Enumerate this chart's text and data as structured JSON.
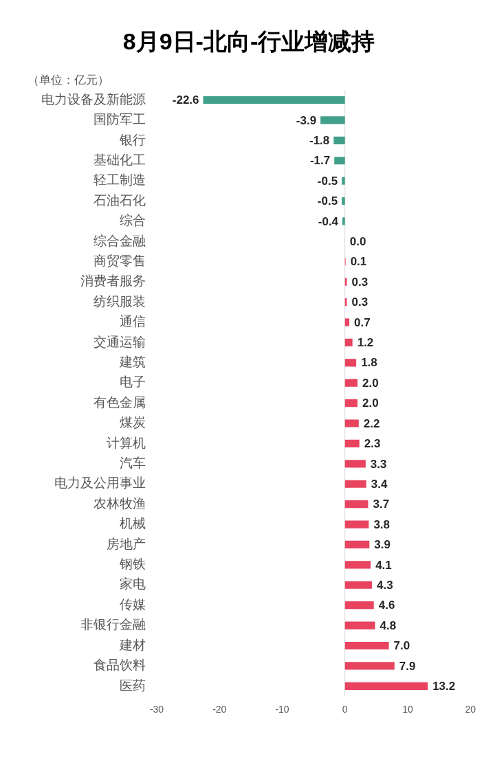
{
  "chart_data": {
    "type": "bar",
    "orientation": "horizontal",
    "title": "8月9日-北向-行业增减持",
    "annotations": [
      "（单位：亿元）"
    ],
    "categories": [
      "电力设备及新能源",
      "国防军工",
      "银行",
      "基础化工",
      "轻工制造",
      "石油石化",
      "综合",
      "综合金融",
      "商贸零售",
      "消费者服务",
      "纺织服装",
      "通信",
      "交通运输",
      "建筑",
      "电子",
      "有色金属",
      "煤炭",
      "计算机",
      "汽车",
      "电力及公用事业",
      "农林牧渔",
      "机械",
      "房地产",
      "钢铁",
      "家电",
      "传媒",
      "非银行金融",
      "建材",
      "食品饮料",
      "医药"
    ],
    "values": [
      -22.6,
      -3.9,
      -1.8,
      -1.7,
      -0.5,
      -0.5,
      -0.4,
      0,
      0.1,
      0.3,
      0.3,
      0.7,
      1.2,
      1.8,
      2.0,
      2.0,
      2.2,
      2.3,
      3.3,
      3.4,
      3.7,
      3.8,
      3.9,
      4.1,
      4.3,
      4.6,
      4.8,
      7.0,
      7.9,
      13.2
    ],
    "value_labels": [
      "-22.6",
      "-3.9",
      "-1.8",
      "-1.7",
      "-0.5",
      "-0.5",
      "-0.4",
      "0.0",
      "0.1",
      "0.3",
      "0.3",
      "0.7",
      "1.2",
      "1.8",
      "2.0",
      "2.0",
      "2.2",
      "2.3",
      "3.3",
      "3.4",
      "3.7",
      "3.8",
      "3.9",
      "4.1",
      "4.3",
      "4.6",
      "4.8",
      "7.0",
      "7.9",
      "13.2"
    ],
    "colors": [
      "#41a08b",
      "#41a08b",
      "#41a08b",
      "#41a08b",
      "#41a08b",
      "#41a08b",
      "#41a08b",
      "#e8435f",
      "#e8435f",
      "#e8435f",
      "#e8435f",
      "#e8435f",
      "#e8435f",
      "#e8435f",
      "#e8435f",
      "#e8435f",
      "#e8435f",
      "#e8435f",
      "#e8435f",
      "#e8435f",
      "#e8435f",
      "#e8435f",
      "#e8435f",
      "#e8435f",
      "#e8435f",
      "#e8435f",
      "#e8435f",
      "#e8435f",
      "#e8435f",
      "#e8435f"
    ],
    "xlim": [
      -30,
      20
    ],
    "xticks": [
      -30,
      -20,
      -10,
      0,
      10,
      20
    ],
    "grid": false,
    "ref_lines": [
      {
        "axis": "x",
        "value": 0,
        "color": "#d9d9d9"
      }
    ]
  }
}
